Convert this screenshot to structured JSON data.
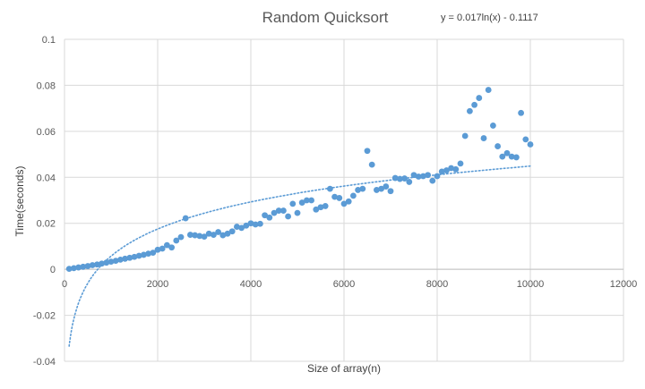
{
  "chart_data": {
    "type": "scatter",
    "title": "Random Quicksort",
    "xlabel": "Size of array(n)",
    "ylabel": "Time(seconds)",
    "xlim": [
      0,
      12000
    ],
    "ylim": [
      -0.04,
      0.1
    ],
    "x_ticks": [
      0,
      2000,
      4000,
      6000,
      8000,
      10000,
      12000
    ],
    "y_ticks": [
      -0.04,
      -0.02,
      0,
      0.02,
      0.04,
      0.06,
      0.08,
      0.1
    ],
    "x_tick_labels": [
      "0",
      "2000",
      "4000",
      "6000",
      "8000",
      "10000",
      "12000"
    ],
    "y_tick_labels": [
      "-0.04",
      "-0.02",
      "0",
      "0.02",
      "0.04",
      "0.06",
      "0.08",
      "0.1"
    ],
    "grid": true,
    "marker_color": "#5B9BD5",
    "trendline": {
      "type": "logarithmic",
      "equation": "y = 0.017ln(x) - 0.1117",
      "a": 0.017,
      "b": -0.1117,
      "x_range": [
        100,
        10000
      ],
      "color": "#5B9BD5",
      "style": "dotted"
    },
    "series": [
      {
        "points": [
          [
            100,
            0.0002
          ],
          [
            200,
            0.0005
          ],
          [
            300,
            0.0008
          ],
          [
            400,
            0.0011
          ],
          [
            500,
            0.0014
          ],
          [
            600,
            0.0018
          ],
          [
            700,
            0.0021
          ],
          [
            800,
            0.0025
          ],
          [
            900,
            0.0029
          ],
          [
            1000,
            0.0033
          ],
          [
            1100,
            0.0037
          ],
          [
            1200,
            0.0042
          ],
          [
            1300,
            0.0046
          ],
          [
            1400,
            0.005
          ],
          [
            1500,
            0.0054
          ],
          [
            1600,
            0.0059
          ],
          [
            1700,
            0.0063
          ],
          [
            1800,
            0.0068
          ],
          [
            1900,
            0.0072
          ],
          [
            2000,
            0.0085
          ],
          [
            2100,
            0.009
          ],
          [
            2200,
            0.0105
          ],
          [
            2300,
            0.0095
          ],
          [
            2400,
            0.0125
          ],
          [
            2500,
            0.014
          ],
          [
            2600,
            0.0222
          ],
          [
            2700,
            0.015
          ],
          [
            2800,
            0.0148
          ],
          [
            2900,
            0.0145
          ],
          [
            3000,
            0.0142
          ],
          [
            3100,
            0.0155
          ],
          [
            3200,
            0.015
          ],
          [
            3300,
            0.0162
          ],
          [
            3400,
            0.0148
          ],
          [
            3500,
            0.0155
          ],
          [
            3600,
            0.0165
          ],
          [
            3700,
            0.0185
          ],
          [
            3800,
            0.018
          ],
          [
            3900,
            0.019
          ],
          [
            4000,
            0.02
          ],
          [
            4100,
            0.0195
          ],
          [
            4200,
            0.0198
          ],
          [
            4300,
            0.0235
          ],
          [
            4400,
            0.0225
          ],
          [
            4500,
            0.0245
          ],
          [
            4600,
            0.0255
          ],
          [
            4700,
            0.0255
          ],
          [
            4800,
            0.023
          ],
          [
            4900,
            0.0285
          ],
          [
            5000,
            0.0245
          ],
          [
            5100,
            0.029
          ],
          [
            5200,
            0.03
          ],
          [
            5300,
            0.03
          ],
          [
            5400,
            0.026
          ],
          [
            5500,
            0.027
          ],
          [
            5600,
            0.0275
          ],
          [
            5700,
            0.035
          ],
          [
            5800,
            0.0315
          ],
          [
            5900,
            0.031
          ],
          [
            6000,
            0.0285
          ],
          [
            6100,
            0.0295
          ],
          [
            6200,
            0.032
          ],
          [
            6300,
            0.0345
          ],
          [
            6400,
            0.035
          ],
          [
            6500,
            0.0515
          ],
          [
            6600,
            0.0455
          ],
          [
            6700,
            0.0345
          ],
          [
            6800,
            0.035
          ],
          [
            6900,
            0.036
          ],
          [
            7000,
            0.034
          ],
          [
            7100,
            0.0397
          ],
          [
            7200,
            0.0393
          ],
          [
            7300,
            0.0395
          ],
          [
            7400,
            0.038
          ],
          [
            7500,
            0.041
          ],
          [
            7600,
            0.0403
          ],
          [
            7700,
            0.0405
          ],
          [
            7800,
            0.041
          ],
          [
            7900,
            0.0385
          ],
          [
            8000,
            0.0405
          ],
          [
            8100,
            0.0425
          ],
          [
            8200,
            0.043
          ],
          [
            8300,
            0.044
          ],
          [
            8400,
            0.0435
          ],
          [
            8500,
            0.046
          ],
          [
            8600,
            0.058
          ],
          [
            8700,
            0.0688
          ],
          [
            8800,
            0.0715
          ],
          [
            8900,
            0.0745
          ],
          [
            9000,
            0.057
          ],
          [
            9100,
            0.078
          ],
          [
            9200,
            0.0625
          ],
          [
            9300,
            0.0535
          ],
          [
            9400,
            0.049
          ],
          [
            9500,
            0.0505
          ],
          [
            9600,
            0.049
          ],
          [
            9700,
            0.0487
          ],
          [
            9800,
            0.068
          ],
          [
            9900,
            0.0565
          ],
          [
            10000,
            0.0543
          ]
        ]
      }
    ]
  }
}
